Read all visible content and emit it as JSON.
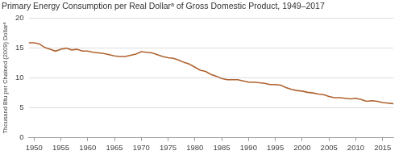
{
  "chart_data": {
    "type": "line",
    "title": "Primary Energy Consumption per Real Dollarᵃ of Gross Domestic Product, 1949–2017",
    "y_label": "Thousand Btu per Chained (2009) Dollarᵃ",
    "x": [
      1949,
      1950,
      1951,
      1952,
      1953,
      1954,
      1955,
      1956,
      1957,
      1958,
      1959,
      1960,
      1961,
      1962,
      1963,
      1964,
      1965,
      1966,
      1967,
      1968,
      1969,
      1970,
      1971,
      1972,
      1973,
      1974,
      1975,
      1976,
      1977,
      1978,
      1979,
      1980,
      1981,
      1982,
      1983,
      1984,
      1985,
      1986,
      1987,
      1988,
      1989,
      1990,
      1991,
      1992,
      1993,
      1994,
      1995,
      1996,
      1997,
      1998,
      1999,
      2000,
      2001,
      2002,
      2003,
      2004,
      2005,
      2006,
      2007,
      2008,
      2009,
      2010,
      2011,
      2012,
      2013,
      2014,
      2015,
      2016,
      2017
    ],
    "values": [
      15.9,
      15.9,
      15.7,
      15.1,
      14.8,
      14.5,
      14.8,
      15.0,
      14.7,
      14.8,
      14.5,
      14.5,
      14.3,
      14.2,
      14.1,
      13.9,
      13.7,
      13.6,
      13.6,
      13.8,
      14.0,
      14.4,
      14.3,
      14.2,
      13.9,
      13.6,
      13.4,
      13.3,
      13.0,
      12.6,
      12.3,
      11.8,
      11.3,
      11.1,
      10.6,
      10.3,
      9.9,
      9.7,
      9.7,
      9.7,
      9.5,
      9.3,
      9.3,
      9.2,
      9.1,
      8.9,
      8.9,
      8.8,
      8.4,
      8.1,
      7.9,
      7.8,
      7.6,
      7.5,
      7.3,
      7.2,
      6.9,
      6.7,
      6.7,
      6.6,
      6.5,
      6.6,
      6.4,
      6.1,
      6.2,
      6.1,
      5.9,
      5.8,
      5.7
    ],
    "color": "#b0622f",
    "xlim": [
      1949,
      2017
    ],
    "xticks": [
      1950,
      1955,
      1960,
      1965,
      1970,
      1975,
      1980,
      1985,
      1990,
      1995,
      2000,
      2005,
      2010,
      2015
    ],
    "ylim": [
      0,
      20
    ],
    "yticks": [
      0,
      5,
      10,
      15,
      20
    ],
    "grid": true
  }
}
